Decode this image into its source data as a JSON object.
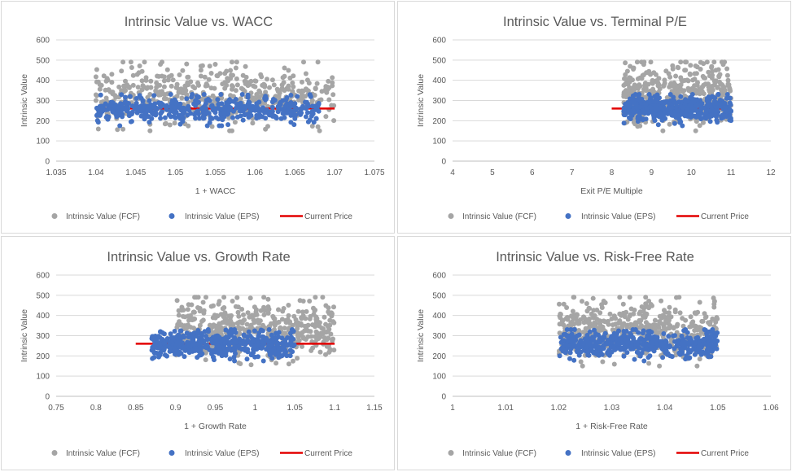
{
  "chart_data": [
    {
      "type": "scatter",
      "title": "Intrinsic Value vs. WACC",
      "xlabel": "1 + WACC",
      "ylabel": "Intrinsic Value",
      "xlim": [
        1.035,
        1.075
      ],
      "ylim": [
        0,
        600
      ],
      "xticks": [
        1.035,
        1.04,
        1.045,
        1.05,
        1.055,
        1.06,
        1.065,
        1.07,
        1.075
      ],
      "xtick_labels": [
        "1.035",
        "1.04",
        "1.045",
        "1.05",
        "1.055",
        "1.06",
        "1.065",
        "1.07",
        "1.075"
      ],
      "yticks": [
        0,
        100,
        200,
        300,
        400,
        500,
        600
      ],
      "grid": "horizontal",
      "legend_position": "bottom",
      "fcf_range": {
        "x": [
          1.04,
          1.07
        ],
        "y": [
          150,
          490
        ]
      },
      "eps_range": {
        "x": [
          1.04,
          1.068
        ],
        "y": [
          175,
          330
        ]
      },
      "current_price": {
        "value": 260,
        "x": [
          1.04,
          1.07
        ]
      },
      "series": [
        {
          "name": "Intrinsic Value (FCF)",
          "color": "#a5a5a5",
          "values": []
        },
        {
          "name": "Intrinsic Value (EPS)",
          "color": "#4472c4",
          "values": []
        },
        {
          "name": "Current Price",
          "color": "#e30000",
          "values": []
        }
      ]
    },
    {
      "type": "scatter",
      "title": "Intrinsic Value vs. Terminal P/E",
      "xlabel": "Exit P/E Multiple",
      "ylabel": "Intrinsic Value",
      "xlim": [
        4,
        12
      ],
      "ylim": [
        0,
        600
      ],
      "xticks": [
        4,
        5,
        6,
        7,
        8,
        9,
        10,
        11,
        12
      ],
      "xtick_labels": [
        "4",
        "5",
        "6",
        "7",
        "8",
        "9",
        "10",
        "11",
        "12"
      ],
      "yticks": [
        0,
        100,
        200,
        300,
        400,
        500,
        600
      ],
      "grid": "horizontal",
      "legend_position": "bottom",
      "fcf_range": {
        "x": [
          8.3,
          11.0
        ],
        "y": [
          150,
          490
        ]
      },
      "eps_range": {
        "x": [
          8.3,
          11.0
        ],
        "y": [
          175,
          330
        ]
      },
      "current_price": {
        "value": 260,
        "x": [
          8,
          11
        ]
      },
      "series": [
        {
          "name": "Intrinsic Value (FCF)",
          "color": "#a5a5a5",
          "values": []
        },
        {
          "name": "Intrinsic Value (EPS)",
          "color": "#4472c4",
          "values": []
        },
        {
          "name": "Current Price",
          "color": "#e30000",
          "values": []
        }
      ]
    },
    {
      "type": "scatter",
      "title": "Intrinsic Value vs. Growth Rate",
      "xlabel": "1 + Growth Rate",
      "ylabel": "Intrinsic Value",
      "xlim": [
        0.75,
        1.15
      ],
      "ylim": [
        0,
        600
      ],
      "xticks": [
        0.75,
        0.8,
        0.85,
        0.9,
        0.95,
        1.0,
        1.05,
        1.1,
        1.15
      ],
      "xtick_labels": [
        "0.75",
        "0.8",
        "0.85",
        "0.9",
        "0.95",
        "1",
        "1.05",
        "1.1",
        "1.15"
      ],
      "yticks": [
        0,
        100,
        200,
        300,
        400,
        500,
        600
      ],
      "grid": "horizontal",
      "legend_position": "bottom",
      "fcf_range": {
        "x": [
          0.9,
          1.1
        ],
        "y": [
          150,
          490
        ]
      },
      "eps_range": {
        "x": [
          0.87,
          1.05
        ],
        "y": [
          175,
          330
        ]
      },
      "current_price": {
        "value": 260,
        "x": [
          0.85,
          1.1
        ]
      },
      "series": [
        {
          "name": "Intrinsic Value (FCF)",
          "color": "#a5a5a5",
          "values": []
        },
        {
          "name": "Intrinsic Value (EPS)",
          "color": "#4472c4",
          "values": []
        },
        {
          "name": "Current Price",
          "color": "#e30000",
          "values": []
        }
      ]
    },
    {
      "type": "scatter",
      "title": "Intrinsic Value vs. Risk-Free Rate",
      "xlabel": "1 + Risk-Free Rate",
      "ylabel": "Intrinsic Value",
      "xlim": [
        1.0,
        1.06
      ],
      "ylim": [
        0,
        600
      ],
      "xticks": [
        1.0,
        1.01,
        1.02,
        1.03,
        1.04,
        1.05,
        1.06
      ],
      "xtick_labels": [
        "1",
        "1.01",
        "1.02",
        "1.03",
        "1.04",
        "1.05",
        "1.06"
      ],
      "yticks": [
        0,
        100,
        200,
        300,
        400,
        500,
        600
      ],
      "grid": "horizontal",
      "legend_position": "bottom",
      "fcf_range": {
        "x": [
          1.02,
          1.05
        ],
        "y": [
          150,
          490
        ]
      },
      "eps_range": {
        "x": [
          1.02,
          1.05
        ],
        "y": [
          175,
          330
        ]
      },
      "current_price": null,
      "series": [
        {
          "name": "Intrinsic Value (FCF)",
          "color": "#a5a5a5",
          "values": []
        },
        {
          "name": "Intrinsic Value (EPS)",
          "color": "#4472c4",
          "values": []
        },
        {
          "name": "Current Price",
          "color": "#e30000",
          "values": []
        }
      ]
    }
  ]
}
